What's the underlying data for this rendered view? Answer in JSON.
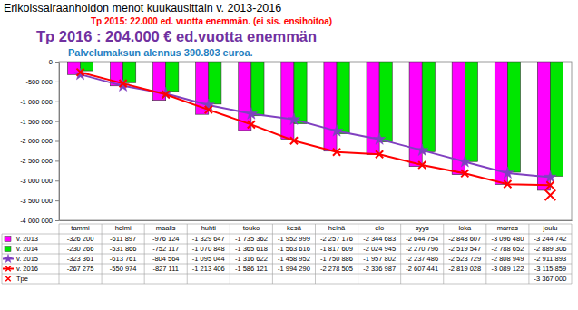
{
  "chart_data": {
    "type": "bar",
    "title": "Erikoissairaanhoidon menot kuukausittain v. 2013-2016",
    "annotations": [
      {
        "text": "Tp 2015: 22.000 ed. vuotta enemmän. (ei sis. ensihoitoa)",
        "color": "#ff0000"
      },
      {
        "text": "Tp 2016 : 204.000 € ed.vuotta enemmän",
        "color": "#7030a0"
      },
      {
        "text": "Palvelumaksun alennus 390.803 euroa.",
        "color": "#1f7fbf"
      }
    ],
    "categories": [
      "tammi",
      "helmi",
      "maalis",
      "huhti",
      "touko",
      "kesä",
      "heinä",
      "elo",
      "syys",
      "loka",
      "marras",
      "joulu"
    ],
    "ylim": [
      -4000000,
      0
    ],
    "yticks": [
      {
        "value": -4000000,
        "label": "-4 000 000"
      },
      {
        "value": -3500000,
        "label": "-3 500 000"
      },
      {
        "value": -3000000,
        "label": "-3 000 000"
      },
      {
        "value": -2500000,
        "label": "-2 500 000"
      },
      {
        "value": -2000000,
        "label": "-2 000 000"
      },
      {
        "value": -1500000,
        "label": "-1 500 000"
      },
      {
        "value": -1000000,
        "label": "-1 000 000"
      },
      {
        "value": -500000,
        "label": "-500 000"
      },
      0
    ],
    "grid": false,
    "series": [
      {
        "name": "v. 2013",
        "type": "bar",
        "color": "#ff00ff",
        "values": [
          -326200,
          -611897,
          -976124,
          -1329647,
          -1735362,
          -1952999,
          -2257176,
          -2344683,
          -2644754,
          -2848607,
          -3096480,
          -3244742
        ],
        "value_labels": [
          "-326 200",
          "-611 897",
          "-976 124",
          "-1 329 647",
          "-1 735 362",
          "-1 952 999",
          "-2 257 176",
          "-2 344 683",
          "-2 644 754",
          "-2 848 607",
          "-3 096 480",
          "-3 244 742"
        ]
      },
      {
        "name": "v. 2014",
        "type": "bar",
        "color": "#00e600",
        "values": [
          -230266,
          -531866,
          -752117,
          -1070848,
          -1365618,
          -1563616,
          -1817609,
          -2024945,
          -2270796,
          -2519547,
          -2788652,
          -2889306
        ],
        "value_labels": [
          "-230 266",
          "-531 866",
          "-752 117",
          "-1 070 848",
          "-1 365 618",
          "-1 563 616",
          "-1 817 609",
          "-2 024 945",
          "-2 270 796",
          "-2 519 547",
          "-2 788 652",
          "-2 889 306"
        ]
      },
      {
        "name": "v. 2015",
        "type": "line",
        "color": "#8040c0",
        "marker": "star",
        "line_style": "solid",
        "values": [
          -323361,
          -613761,
          -804564,
          -1095044,
          -1316622,
          -1458952,
          -1750886,
          -1957802,
          -2237486,
          -2523729,
          -2808949,
          -2911893
        ],
        "value_labels": [
          "-323 361",
          "-613 761",
          "-804 564",
          "-1 095 044",
          "-1 316 622",
          "-1 458 952",
          "-1 750 886",
          "-1 957 802",
          "-2 237 486",
          "-2 523 729",
          "-2 808 949",
          "-2 911 893"
        ]
      },
      {
        "name": "v. 2016",
        "type": "line",
        "color": "#ff0000",
        "marker": "x",
        "line_style": "solid",
        "values": [
          -267275,
          -550974,
          -827111,
          -1213406,
          -1586121,
          -1994290,
          -2278505,
          -2336987,
          -2607441,
          -2819028,
          -3089122,
          -3115859
        ],
        "value_labels": [
          "-267 275",
          "-550 974",
          "-827 111",
          "-1 213 406",
          "-1 586 121",
          "-1 994 290",
          "-2 278 505",
          "-2 336 987",
          "-2 607 441",
          "-2 819 028",
          "-3 089 122",
          "-3 115 859"
        ]
      },
      {
        "name": "Tpe",
        "type": "line",
        "color": "#ff0000",
        "marker": "x",
        "line_style": "none",
        "values": [
          null,
          null,
          null,
          null,
          null,
          null,
          null,
          null,
          null,
          null,
          null,
          -3367000
        ],
        "value_labels": [
          null,
          null,
          null,
          null,
          null,
          null,
          null,
          null,
          null,
          null,
          null,
          "-3 367 000"
        ]
      }
    ]
  }
}
